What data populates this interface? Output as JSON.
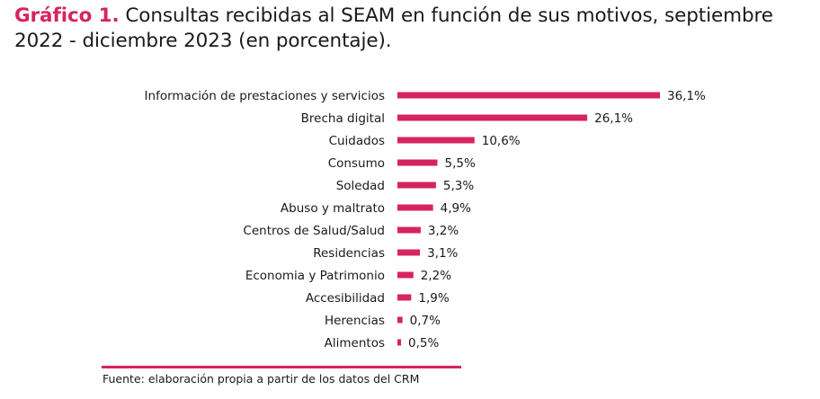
{
  "title": {
    "prefix": "Gráfico 1.",
    "text": " Consultas recibidas al SEAM en función de sus motivos, septiembre 2022 - diciembre 2023 (en porcentaje)."
  },
  "source": "Fuente: elaboración propia a partir de los datos del CRM",
  "colors": {
    "accent": "#d6245d",
    "bar": "#d6245d"
  },
  "chart_data": {
    "type": "bar",
    "orientation": "horizontal",
    "categories": [
      "Información de prestaciones y servicios",
      "Brecha digital",
      "Cuidados",
      "Consumo",
      "Soledad",
      "Abuso y maltrato",
      "Centros de Salud/Salud",
      "Residencias",
      "Economia y Patrimonio",
      "Accesibilidad",
      "Herencias",
      "Alimentos"
    ],
    "values": [
      36.1,
      26.1,
      10.6,
      5.5,
      5.3,
      4.9,
      3.2,
      3.1,
      2.2,
      1.9,
      0.7,
      0.5
    ],
    "value_labels": [
      "36,1%",
      "26,1%",
      "10,6%",
      "5,5%",
      "5,3%",
      "4,9%",
      "3,2%",
      "3,1%",
      "2,2%",
      "1,9%",
      "0,7%",
      "0,5%"
    ],
    "xlim": [
      0,
      36.1
    ],
    "grid": false,
    "legend": "none"
  }
}
